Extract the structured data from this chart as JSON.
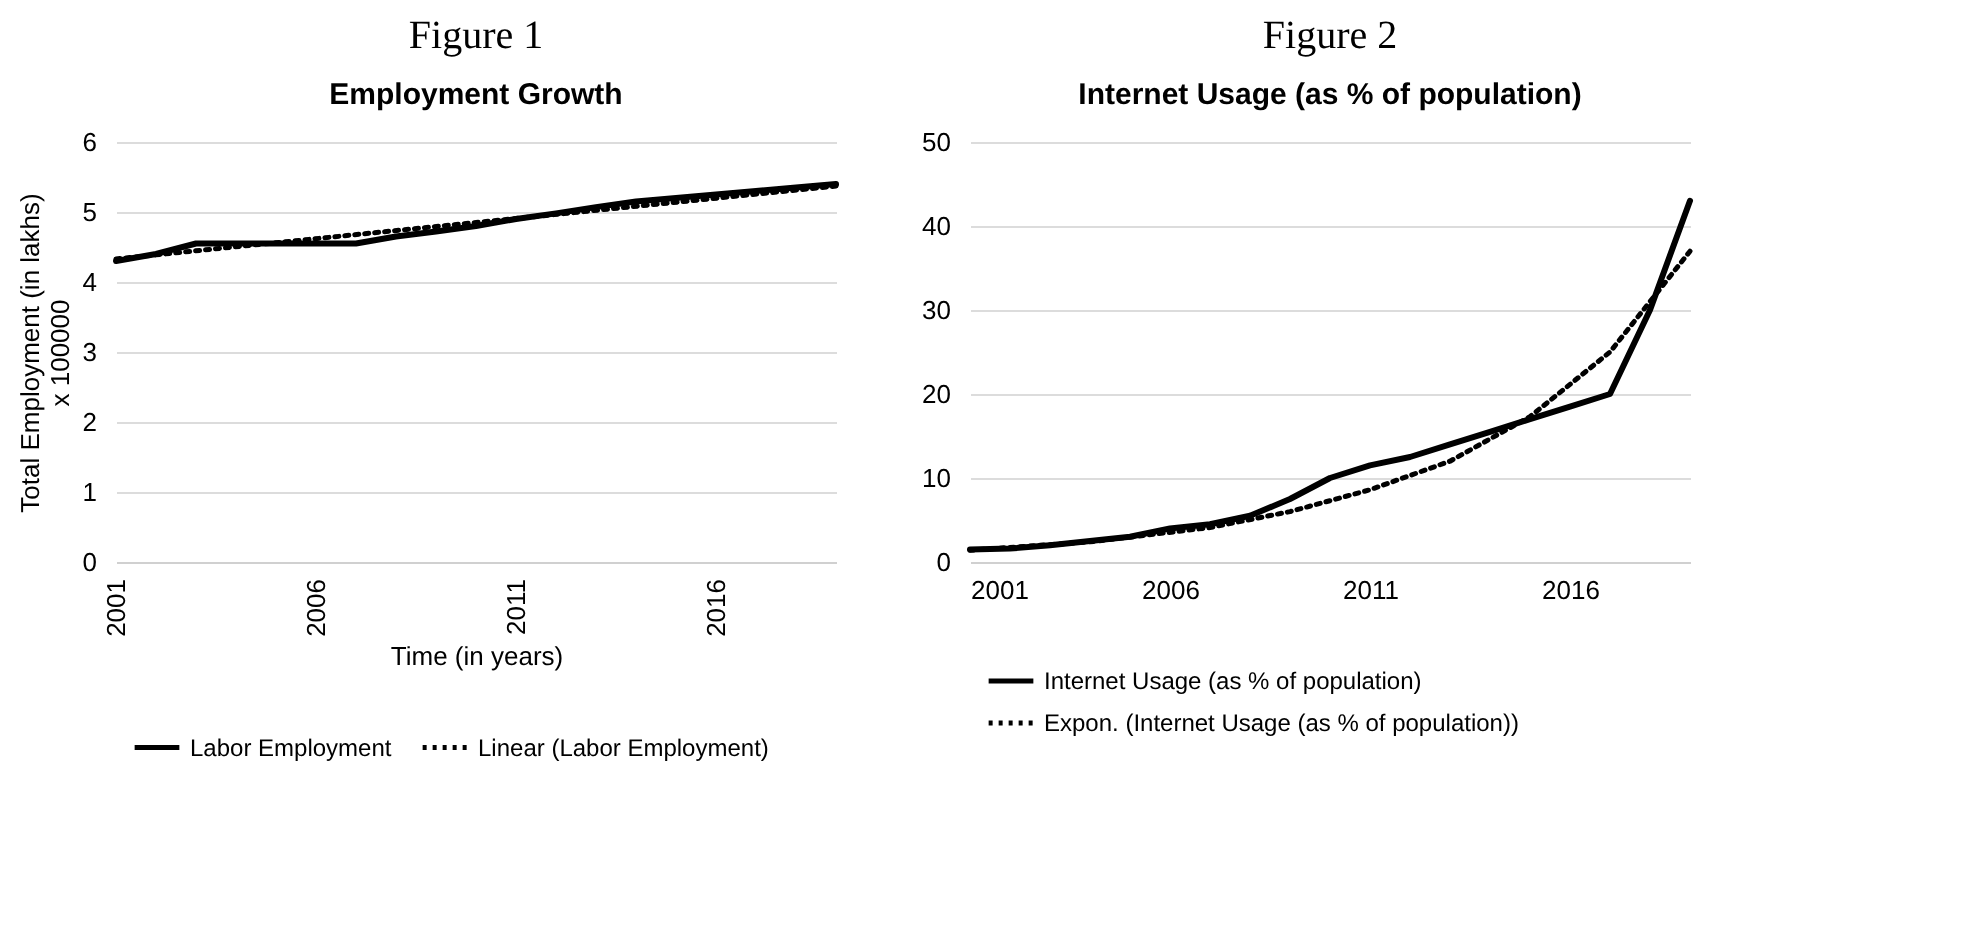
{
  "chart_data": [
    {
      "type": "line",
      "title": "Figure 1",
      "subtitle": "Employment Growth",
      "xlabel": "Time (in years)",
      "ylabel": "Total Employment (in lakhs) x 100000",
      "x": [
        2001,
        2002,
        2003,
        2004,
        2005,
        2006,
        2007,
        2008,
        2009,
        2010,
        2011,
        2012,
        2013,
        2014,
        2015,
        2016,
        2017,
        2018,
        2019
      ],
      "series": [
        {
          "name": "Labor Employment",
          "color": "#000000",
          "line_style": "solid",
          "values": [
            4.3,
            4.4,
            4.55,
            4.55,
            4.55,
            4.55,
            4.55,
            4.65,
            4.72,
            4.8,
            4.9,
            4.98,
            5.07,
            5.15,
            5.2,
            5.25,
            5.3,
            5.35,
            5.4
          ]
        },
        {
          "name": "Linear (Labor Employment)",
          "color": "#000000",
          "line_style": "dotted",
          "type": "line",
          "x": [
            2001,
            2019
          ],
          "values": [
            4.33,
            5.37
          ]
        }
      ],
      "xlim": [
        2001,
        2019
      ],
      "xticks": [
        2001,
        2006,
        2011,
        2016
      ],
      "ylim": [
        0,
        6
      ],
      "yticks": [
        0,
        1,
        2,
        3,
        4,
        5,
        6
      ],
      "grid": "y",
      "legend": "bottom",
      "marker": "none"
    },
    {
      "type": "line",
      "title": "Figure 2",
      "subtitle": "Internet Usage (as % of population)",
      "x": [
        2001,
        2002,
        2003,
        2004,
        2005,
        2006,
        2007,
        2008,
        2009,
        2010,
        2011,
        2012,
        2013,
        2014,
        2015,
        2016,
        2017,
        2018,
        2019
      ],
      "series": [
        {
          "name": "Internet Usage (as % of population)",
          "color": "#000000",
          "line_style": "solid",
          "values": [
            1.5,
            1.6,
            2,
            2.5,
            3,
            4,
            4.5,
            5.5,
            7.5,
            10,
            11.5,
            12.5,
            14,
            15.5,
            17,
            18.5,
            20,
            30,
            43
          ]
        },
        {
          "name": "Expon. (Internet Usage (as % of population))",
          "color": "#000000",
          "line_style": "dotted",
          "type": "line",
          "x": [
            2001,
            2004,
            2007,
            2009,
            2011,
            2013,
            2015,
            2017,
            2019
          ],
          "values": [
            1.4,
            2.4,
            4.1,
            6,
            8.6,
            12,
            17.3,
            25,
            37
          ]
        }
      ],
      "xlim": [
        2001,
        2019
      ],
      "xticks": [
        2001,
        2006,
        2011,
        2016
      ],
      "ylim": [
        0,
        50
      ],
      "yticks": [
        0,
        10,
        20,
        30,
        40,
        50
      ],
      "grid": "y",
      "legend": "bottom",
      "marker": "none"
    }
  ]
}
